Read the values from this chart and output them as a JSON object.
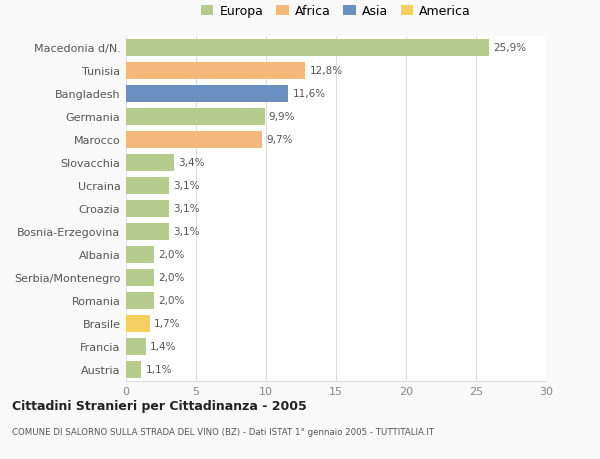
{
  "categories": [
    "Macedonia d/N.",
    "Tunisia",
    "Bangladesh",
    "Germania",
    "Marocco",
    "Slovacchia",
    "Ucraina",
    "Croazia",
    "Bosnia-Erzegovina",
    "Albania",
    "Serbia/Montenegro",
    "Romania",
    "Brasile",
    "Francia",
    "Austria"
  ],
  "values": [
    25.9,
    12.8,
    11.6,
    9.9,
    9.7,
    3.4,
    3.1,
    3.1,
    3.1,
    2.0,
    2.0,
    2.0,
    1.7,
    1.4,
    1.1
  ],
  "labels": [
    "25,9%",
    "12,8%",
    "11,6%",
    "9,9%",
    "9,7%",
    "3,4%",
    "3,1%",
    "3,1%",
    "3,1%",
    "2,0%",
    "2,0%",
    "2,0%",
    "1,7%",
    "1,4%",
    "1,1%"
  ],
  "colors": [
    "#b5cc8e",
    "#f4b87a",
    "#6b8fc0",
    "#b5cc8e",
    "#f4b87a",
    "#b5cc8e",
    "#b5cc8e",
    "#b5cc8e",
    "#b5cc8e",
    "#b5cc8e",
    "#b5cc8e",
    "#b5cc8e",
    "#f5d060",
    "#b5cc8e",
    "#b5cc8e"
  ],
  "legend_labels": [
    "Europa",
    "Africa",
    "Asia",
    "America"
  ],
  "legend_colors": [
    "#b5cc8e",
    "#f4b87a",
    "#6b8fc0",
    "#f5d060"
  ],
  "title": "Cittadini Stranieri per Cittadinanza - 2005",
  "subtitle": "COMUNE DI SALORNO SULLA STRADA DEL VINO (BZ) - Dati ISTAT 1° gennaio 2005 - TUTTITALIA.IT",
  "xlim": [
    0,
    30
  ],
  "xticks": [
    0,
    5,
    10,
    15,
    20,
    25,
    30
  ],
  "background_color": "#f9f9f9",
  "plot_background": "#ffffff",
  "grid_color": "#dddddd",
  "bar_height": 0.75
}
